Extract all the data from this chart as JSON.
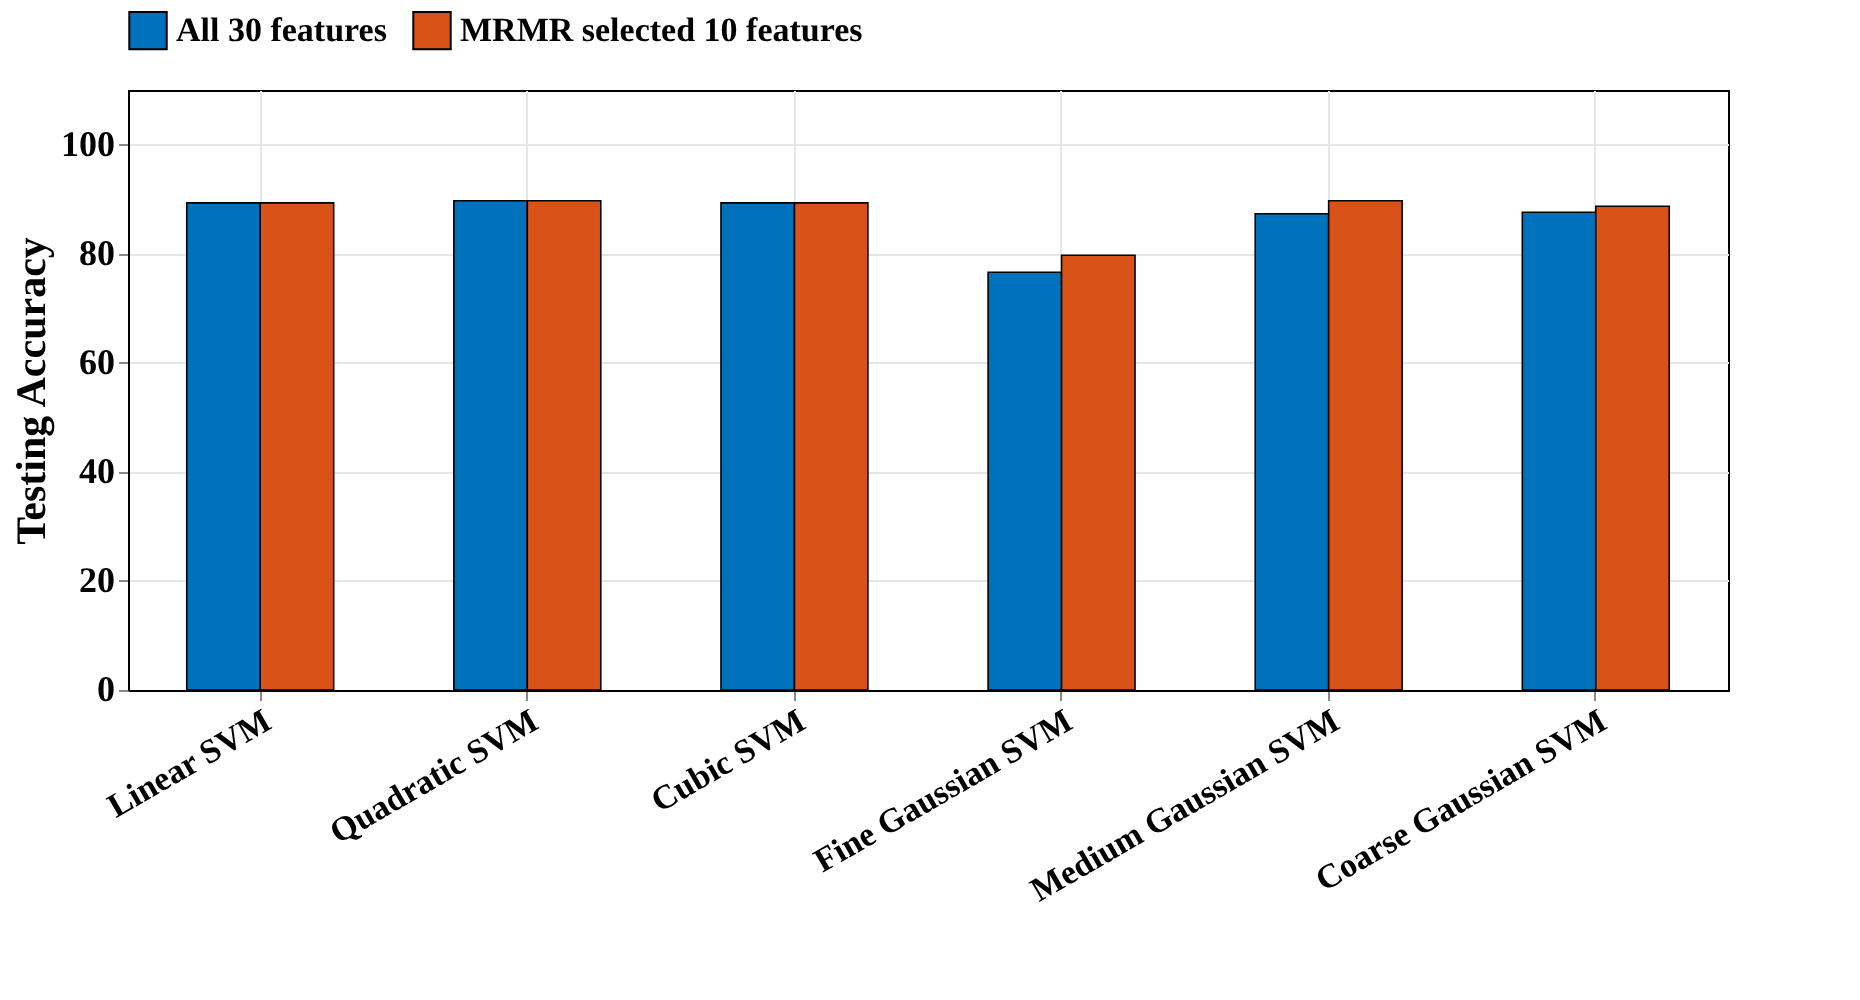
{
  "chart_data": {
    "type": "bar",
    "ylabel": "Testing Accuracy",
    "categories": [
      "Linear SVM",
      "Quadratic SVM",
      "Cubic SVM",
      "Fine Gaussian SVM",
      "Medium Gaussian SVM",
      "Coarse Gaussian SVM"
    ],
    "series": [
      {
        "name": "All 30 features",
        "color": "#0072bd",
        "values": [
          89.3,
          89.7,
          89.3,
          76.6,
          87.3,
          87.6
        ]
      },
      {
        "name": "MRMR selected 10 features",
        "color": "#d95319",
        "values": [
          89.3,
          89.7,
          89.3,
          79.7,
          89.7,
          88.7
        ]
      }
    ],
    "ylim": [
      0,
      110
    ],
    "yticks": [
      0,
      20,
      40,
      60,
      80,
      100
    ],
    "grid": true,
    "legend": "top"
  }
}
